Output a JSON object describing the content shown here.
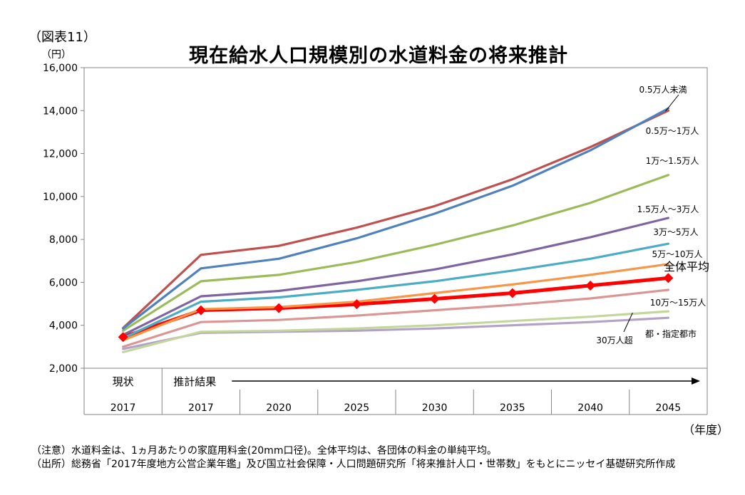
{
  "figure_label": "（図表11）",
  "unit_label": "（円）",
  "x_unit_label": "（年度）",
  "notes": [
    "（注意）水道料金は、1ヵ月あたりの家庭用料金(20mm口径)。全体平均は、各団体の料金の単純平均。",
    "（出所）総務省「2017年度地方公営企業年鑑」及び国立社会保障・人口問題研究所「将来推計人口・世帯数」をもとにニッセイ基礎研究所作成"
  ],
  "chart_data": {
    "type": "line",
    "title": "現在給水人口規模別の水道料金の将来推計",
    "ylabel": "（円）",
    "xlabel": "（年度）",
    "ylim": [
      2000,
      16000
    ],
    "yticks": [
      2000,
      4000,
      6000,
      8000,
      10000,
      12000,
      14000,
      16000
    ],
    "ytick_labels": [
      "2,000",
      "4,000",
      "6,000",
      "8,000",
      "10,000",
      "12,000",
      "14,000",
      "16,000"
    ],
    "categories": [
      "2017",
      "2017",
      "2020",
      "2025",
      "2030",
      "2035",
      "2040",
      "2045"
    ],
    "group_labels": {
      "current": "現状",
      "projection": "推計結果"
    },
    "grid": false,
    "series": [
      {
        "name": "0.5万人未満",
        "color": "#4F81BD",
        "values": [
          3850,
          6650,
          7100,
          8050,
          9200,
          10500,
          12150,
          14100
        ]
      },
      {
        "name": "0.5万～1万人",
        "color": "#C0504D",
        "values": [
          3870,
          7280,
          7700,
          8550,
          9550,
          10800,
          12300,
          14000
        ]
      },
      {
        "name": "1万～1.5万人",
        "color": "#9BBB59",
        "values": [
          3750,
          6050,
          6350,
          6950,
          7750,
          8650,
          9700,
          11000
        ]
      },
      {
        "name": "1.5万人～3万人",
        "color": "#8064A2",
        "values": [
          3550,
          5350,
          5600,
          6050,
          6600,
          7300,
          8100,
          9000
        ]
      },
      {
        "name": "3万～5万人",
        "color": "#4BACC6",
        "values": [
          3400,
          5100,
          5300,
          5650,
          6050,
          6550,
          7100,
          7800
        ]
      },
      {
        "name": "5万～10万人",
        "color": "#F79646",
        "values": [
          3300,
          4750,
          4850,
          5100,
          5500,
          5900,
          6350,
          6850
        ]
      },
      {
        "name": "10万～15万人",
        "color": "#D99694",
        "values": [
          3000,
          4150,
          4250,
          4450,
          4700,
          4950,
          5250,
          5650
        ]
      },
      {
        "name": "30万人超",
        "color": "#C3D69B",
        "values": [
          2750,
          3700,
          3750,
          3850,
          4000,
          4200,
          4400,
          4650
        ]
      },
      {
        "name": "都・指定都市",
        "color": "#B3A2C7",
        "values": [
          2900,
          3650,
          3700,
          3750,
          3850,
          4000,
          4150,
          4350
        ]
      },
      {
        "name": "全体平均",
        "color": "#FF0000",
        "values": [
          3450,
          4700,
          4800,
          4980,
          5230,
          5500,
          5850,
          6200
        ]
      }
    ]
  }
}
